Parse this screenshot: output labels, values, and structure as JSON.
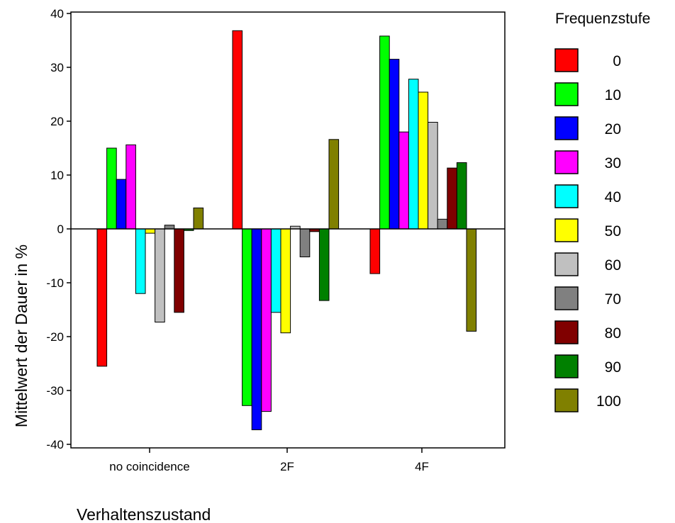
{
  "chart_data": {
    "type": "bar",
    "title": "",
    "xlabel": "Verhaltenszustand",
    "ylabel": "Mittelwert der Dauer in %",
    "ylim": [
      -40,
      40
    ],
    "yticks": [
      -40,
      -30,
      -20,
      -10,
      0,
      10,
      20,
      30,
      40
    ],
    "ytick_labels": [
      "-40",
      "-30",
      "-20",
      "-10",
      "0",
      "10",
      "20",
      "30",
      "40"
    ],
    "grid": false,
    "legend_title": "Frequenzstufe",
    "legend_position": "right",
    "categories": [
      "no coincidence",
      "2F",
      "4F"
    ],
    "series": [
      {
        "name": "0",
        "color": "#ff0000",
        "values": [
          -25.5,
          36.8,
          -8.3
        ]
      },
      {
        "name": "10",
        "color": "#00ff00",
        "values": [
          15.0,
          -32.8,
          35.8
        ]
      },
      {
        "name": "20",
        "color": "#0000ff",
        "values": [
          9.2,
          -37.3,
          31.5
        ]
      },
      {
        "name": "30",
        "color": "#ff00ff",
        "values": [
          15.6,
          -33.9,
          18.0
        ]
      },
      {
        "name": "40",
        "color": "#00ffff",
        "values": [
          -12.0,
          -15.5,
          27.8
        ]
      },
      {
        "name": "50",
        "color": "#ffff00",
        "values": [
          -0.8,
          -19.3,
          25.4
        ]
      },
      {
        "name": "60",
        "color": "#c0c0c0",
        "values": [
          -17.3,
          0.5,
          19.8
        ]
      },
      {
        "name": "70",
        "color": "#808080",
        "values": [
          0.7,
          -5.2,
          1.8
        ]
      },
      {
        "name": "80",
        "color": "#800000",
        "values": [
          -15.5,
          -0.5,
          11.3
        ]
      },
      {
        "name": "90",
        "color": "#008000",
        "values": [
          -0.3,
          -13.3,
          12.3
        ]
      },
      {
        "name": "100",
        "color": "#808000",
        "values": [
          3.9,
          16.6,
          -19.0
        ]
      }
    ]
  }
}
